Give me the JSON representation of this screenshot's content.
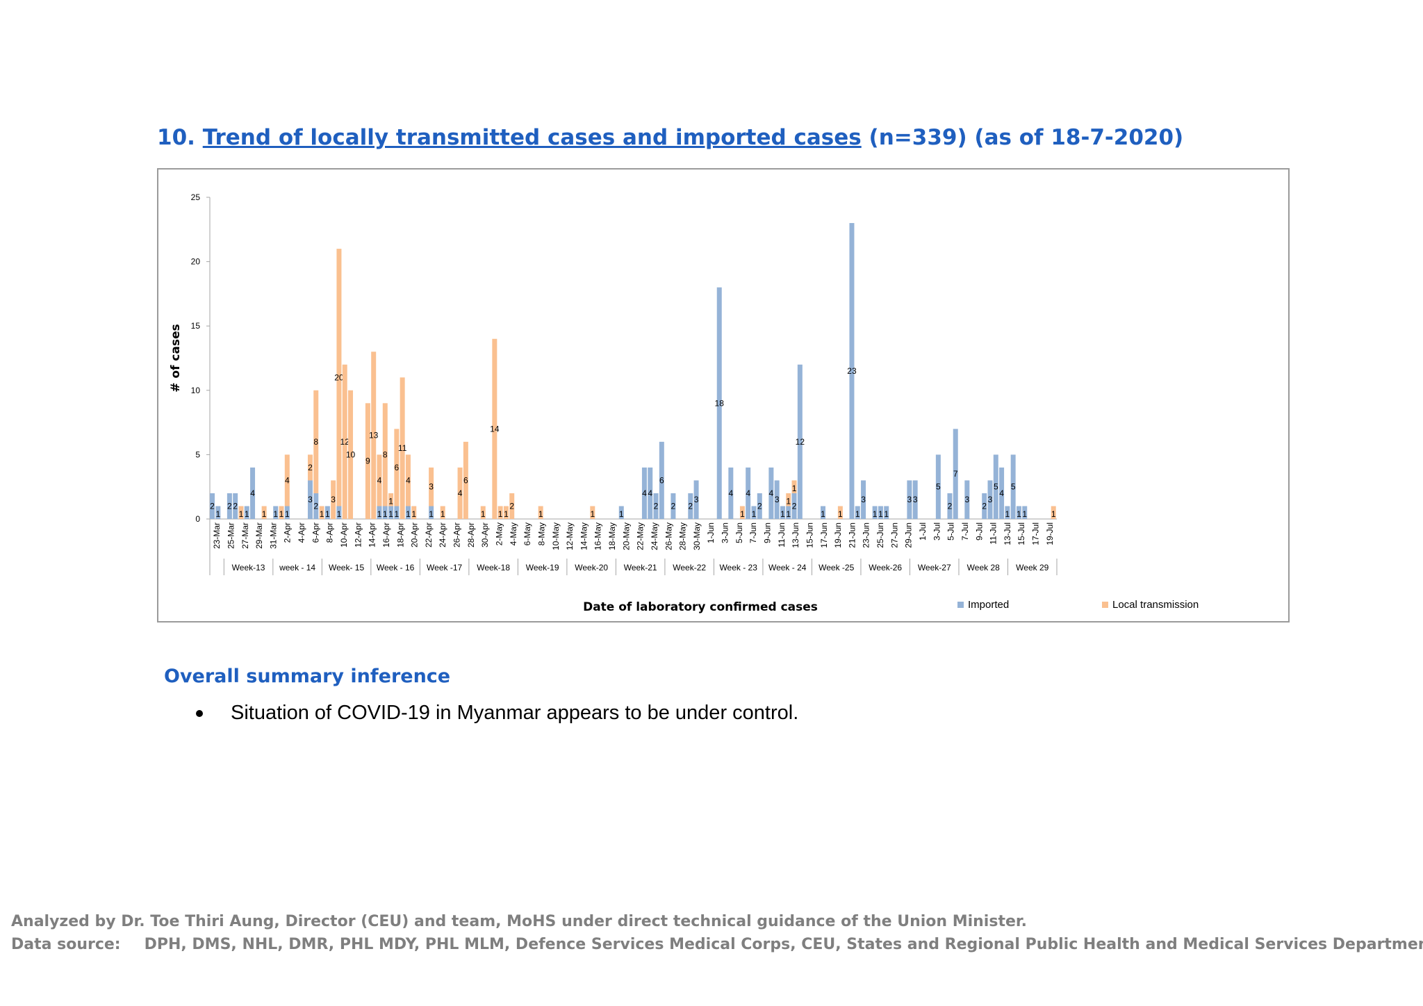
{
  "heading": {
    "number": "10.",
    "link_text": "Trend of locally transmitted cases and imported cases",
    "suffix": "(n=339) (as of 18-7-2020)"
  },
  "summary": {
    "heading": "Overall summary inference",
    "bullets": [
      "Situation of COVID-19 in Myanmar appears to be under control."
    ]
  },
  "footer": {
    "line1": "Analyzed by Dr. Toe Thiri Aung, Director (CEU) and team, MoHS under direct technical guidance of the Union Minister.",
    "source_label": "Data source:",
    "source_text": "DPH, DMS, NHL, DMR, PHL MDY, PHL MLM, Defence Services Medical Corps, CEU, States and Regional Public Health and Medical Services Departments"
  },
  "chart_data": {
    "type": "bar",
    "stacked": true,
    "ylabel": "# of cases",
    "xlabel": "Date of laboratory confirmed cases",
    "ylim": [
      0,
      25
    ],
    "yticks": [
      0,
      5,
      10,
      15,
      20,
      25
    ],
    "legend_position": "bottom-right",
    "colors": {
      "imported": "#95b3d7",
      "local": "#fac090"
    },
    "series": [
      {
        "name": "Imported",
        "key": "imported"
      },
      {
        "name": "Local transmission",
        "key": "local"
      }
    ],
    "date_labels": [
      "23-Mar",
      "25-Mar",
      "27-Mar",
      "29-Mar",
      "31-Mar",
      "2-Apr",
      "4-Apr",
      "6-Apr",
      "8-Apr",
      "10-Apr",
      "12-Apr",
      "14-Apr",
      "16-Apr",
      "18-Apr",
      "20-Apr",
      "22-Apr",
      "24-Apr",
      "26-Apr",
      "28-Apr",
      "30-Apr",
      "2-May",
      "4-May",
      "6-May",
      "8-May",
      "10-May",
      "12-May",
      "14-May",
      "16-May",
      "18-May",
      "20-May",
      "22-May",
      "24-May",
      "26-May",
      "28-May",
      "30-May",
      "1-Jun",
      "3-Jun",
      "5-Jun",
      "7-Jun",
      "9-Jun",
      "11-Jun",
      "13-Jun",
      "15-Jun",
      "17-Jun",
      "19-Jun",
      "21-Jun",
      "23-Jun",
      "25-Jun",
      "27-Jun",
      "29-Jun",
      "1-Jul",
      "3-Jul",
      "5-Jul",
      "7-Jul",
      "9-Jul",
      "11-Jul",
      "13-Jul",
      "15-Jul",
      "17-Jul",
      "19-Jul"
    ],
    "imported": [
      2,
      1,
      0,
      2,
      2,
      0,
      1,
      4,
      0,
      0,
      0,
      1,
      0,
      1,
      0,
      0,
      0,
      3,
      2,
      0,
      1,
      0,
      1,
      0,
      0,
      0,
      0,
      0,
      0,
      1,
      1,
      1,
      1,
      0,
      1,
      0,
      0,
      0,
      1,
      0,
      0,
      0,
      0,
      0,
      0,
      0,
      0,
      0,
      0,
      0,
      0,
      0,
      0,
      0,
      0,
      0,
      0,
      0,
      0,
      0,
      0,
      0,
      0,
      0,
      0,
      0,
      0,
      0,
      0,
      0,
      0,
      1,
      0,
      0,
      0,
      4,
      4,
      2,
      6,
      0,
      2,
      0,
      0,
      2,
      3,
      0,
      0,
      0,
      18,
      0,
      4,
      0,
      0,
      4,
      1,
      2,
      0,
      4,
      3,
      1,
      1,
      2,
      12,
      0,
      0,
      0,
      1,
      0,
      0,
      0,
      0,
      23,
      1,
      3,
      0,
      1,
      1,
      1,
      0,
      0,
      0,
      3,
      3,
      0,
      0,
      0,
      5,
      0,
      2,
      7,
      0,
      3,
      0,
      0,
      2,
      3,
      5,
      4,
      1,
      5,
      1,
      1,
      0,
      0,
      0,
      0,
      0
    ],
    "local": [
      0,
      0,
      0,
      0,
      0,
      1,
      0,
      0,
      0,
      1,
      0,
      0,
      1,
      4,
      0,
      0,
      0,
      2,
      8,
      1,
      0,
      3,
      20,
      12,
      10,
      0,
      0,
      9,
      13,
      4,
      8,
      1,
      6,
      11,
      4,
      1,
      0,
      0,
      3,
      0,
      1,
      0,
      0,
      4,
      6,
      0,
      0,
      1,
      0,
      14,
      1,
      1,
      2,
      0,
      0,
      0,
      0,
      1,
      0,
      0,
      0,
      0,
      0,
      0,
      0,
      0,
      1,
      0,
      0,
      0,
      0,
      0,
      0,
      0,
      0,
      0,
      0,
      0,
      0,
      0,
      0,
      0,
      0,
      0,
      0,
      0,
      0,
      0,
      0,
      0,
      0,
      0,
      1,
      0,
      0,
      0,
      0,
      0,
      0,
      0,
      1,
      1,
      0,
      0,
      0,
      0,
      0,
      0,
      0,
      1,
      0,
      0,
      0,
      0,
      0,
      0,
      0,
      0,
      0,
      0,
      0,
      0,
      0,
      0,
      0,
      0,
      0,
      0,
      0,
      0,
      0,
      0,
      0,
      0,
      0,
      0,
      0,
      0,
      0,
      0,
      0,
      0,
      0,
      0,
      0,
      0,
      1,
      0,
      0,
      0
    ],
    "weeks": [
      {
        "label": "Week-13",
        "start": 2,
        "end": 7
      },
      {
        "label": "week - 14",
        "start": 8,
        "end": 14
      },
      {
        "label": "Week- 15",
        "start": 15,
        "end": 21
      },
      {
        "label": "Week - 16",
        "start": 22,
        "end": 28
      },
      {
        "label": "Week -17",
        "start": 29,
        "end": 35
      },
      {
        "label": "Week-18",
        "start": 36,
        "end": 42
      },
      {
        "label": "Week-19",
        "start": 43,
        "end": 49
      },
      {
        "label": "Week-20",
        "start": 50,
        "end": 56
      },
      {
        "label": "Week-21",
        "start": 57,
        "end": 63
      },
      {
        "label": "Week-22",
        "start": 64,
        "end": 70
      },
      {
        "label": "Week - 23",
        "start": 71,
        "end": 77
      },
      {
        "label": "Week - 24",
        "start": 78,
        "end": 84
      },
      {
        "label": "Week -25",
        "start": 85,
        "end": 91
      },
      {
        "label": "Week-26",
        "start": 92,
        "end": 98
      },
      {
        "label": "Week-27",
        "start": 99,
        "end": 105
      },
      {
        "label": "Week 28",
        "start": 106,
        "end": 112
      },
      {
        "label": "Week 29",
        "start": 113,
        "end": 118
      }
    ]
  }
}
